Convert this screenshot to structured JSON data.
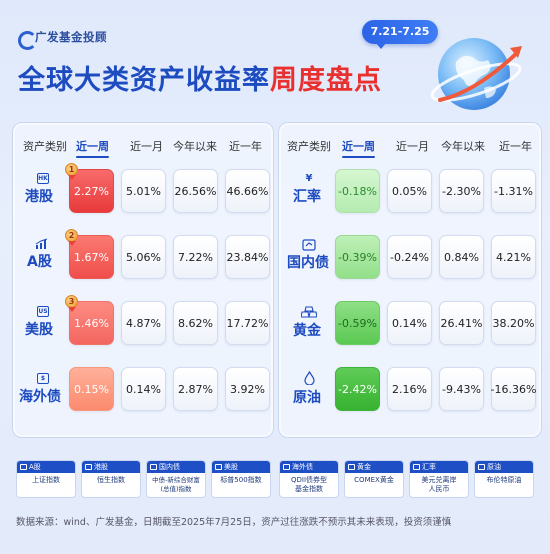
{
  "header": {
    "brand": "广发基金投顾",
    "date_range": "7.21-7.25",
    "title_part1": "全球大类资产收益率",
    "title_part2": "周度盘点"
  },
  "columns": [
    "资产类别",
    "近一周",
    "近一月",
    "今年以来",
    "近一年"
  ],
  "left_table": {
    "rows": [
      {
        "name": "港股",
        "icon": "hk-icon",
        "icon_text": "HK",
        "rank": "1",
        "week": "2.27%",
        "month": "5.01%",
        "ytd": "26.56%",
        "year": "46.66%"
      },
      {
        "name": "A股",
        "icon": "bar-chart-icon",
        "icon_text": "",
        "rank": "2",
        "week": "1.67%",
        "month": "5.06%",
        "ytd": "7.22%",
        "year": "23.84%"
      },
      {
        "name": "美股",
        "icon": "us-icon",
        "icon_text": "US",
        "rank": "3",
        "week": "1.46%",
        "month": "4.87%",
        "ytd": "8.62%",
        "year": "17.72%"
      },
      {
        "name": "海外债",
        "icon": "dollar-icon",
        "icon_text": "$",
        "rank": "",
        "week": "0.15%",
        "month": "0.14%",
        "ytd": "2.87%",
        "year": "3.92%"
      }
    ]
  },
  "right_table": {
    "rows": [
      {
        "name": "汇率",
        "icon": "yen-icon",
        "icon_text": "¥",
        "week": "-0.18%",
        "month": "0.05%",
        "ytd": "-2.30%",
        "year": "-1.31%"
      },
      {
        "name": "国内债",
        "icon": "bond-icon",
        "icon_text": "",
        "week": "-0.39%",
        "month": "-0.24%",
        "ytd": "0.84%",
        "year": "4.21%"
      },
      {
        "name": "黄金",
        "icon": "gold-icon",
        "icon_text": "",
        "week": "-0.59%",
        "month": "0.14%",
        "ytd": "26.41%",
        "year": "38.20%"
      },
      {
        "name": "原油",
        "icon": "oil-drop-icon",
        "icon_text": "",
        "week": "-2.42%",
        "month": "2.16%",
        "ytd": "-9.43%",
        "year": "-16.36%"
      }
    ]
  },
  "legend": [
    {
      "tag": "A股",
      "desc": "上证指数",
      "desc2": ""
    },
    {
      "tag": "港股",
      "desc": "恒生指数",
      "desc2": ""
    },
    {
      "tag": "国内债",
      "desc": "中债-新综合财富",
      "desc2": "(总值)指数"
    },
    {
      "tag": "美股",
      "desc": "标普500指数",
      "desc2": ""
    },
    {
      "tag": "海外债",
      "desc": "QDII债券型",
      "desc2": "基金指数"
    },
    {
      "tag": "黄金",
      "desc": "COMEX黄金",
      "desc2": ""
    },
    {
      "tag": "汇率",
      "desc": "美元兑离岸",
      "desc2": "人民币"
    },
    {
      "tag": "原油",
      "desc": "布伦特原油",
      "desc2": ""
    }
  ],
  "footer": "数据来源：wind、广发基金，日期截至2025年7月25日，资产过往涨跌不预示其未来表现，投资须谨慎",
  "colors": {
    "accent": "#1d4bc0",
    "highlight": "#e8302f",
    "up": "#e83a3a",
    "down": "#38b231"
  }
}
